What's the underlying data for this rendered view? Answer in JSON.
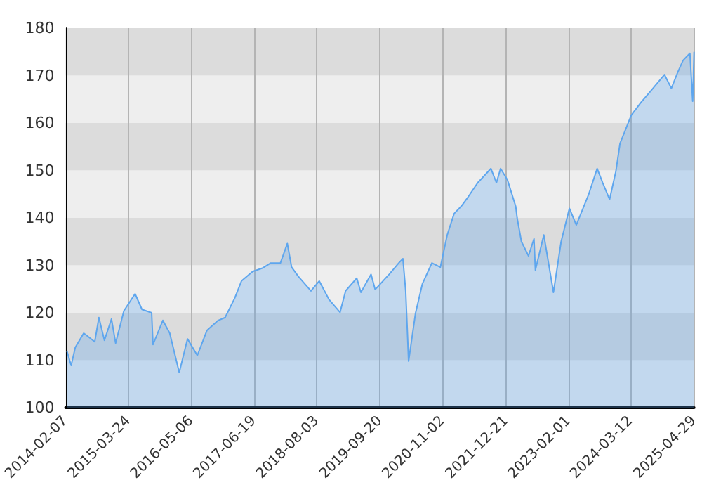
{
  "chart_data": {
    "type": "area",
    "xlim": [
      "2014-02-07",
      "2025-04-29"
    ],
    "xticks": [
      "2014-02-07",
      "2015-03-24",
      "2016-05-06",
      "2017-06-19",
      "2018-08-03",
      "2019-09-20",
      "2020-11-02",
      "2021-12-21",
      "2023-02-01",
      "2024-03-12",
      "2025-04-29"
    ],
    "ylim": [
      100,
      180
    ],
    "yticks": [
      100,
      110,
      120,
      130,
      140,
      150,
      160,
      170,
      180
    ],
    "grid": true,
    "marker": "none",
    "series": [
      {
        "color": "#5ea6ee",
        "x": [
          "2014-02-16",
          "2014-03-15",
          "2014-04-11",
          "2014-06-05",
          "2014-08-16",
          "2014-09-12",
          "2014-10-18",
          "2014-12-03",
          "2014-12-30",
          "2015-02-22",
          "2015-05-06",
          "2015-06-20",
          "2015-08-22",
          "2015-08-31",
          "2015-11-03",
          "2015-12-18",
          "2016-02-18",
          "2016-04-12",
          "2016-06-15",
          "2016-08-17",
          "2016-10-29",
          "2016-12-13",
          "2017-02-14",
          "2017-03-30",
          "2017-06-11",
          "2017-08-13",
          "2017-10-07",
          "2017-12-09",
          "2018-01-23",
          "2018-02-20",
          "2018-04-06",
          "2018-06-26",
          "2018-08-19",
          "2018-10-22",
          "2019-01-02",
          "2019-02-07",
          "2019-04-21",
          "2019-05-18",
          "2019-07-23",
          "2019-08-19",
          "2019-11-18",
          "2020-01-20",
          "2020-02-16",
          "2020-03-05",
          "2020-03-24",
          "2020-05-08",
          "2020-06-22",
          "2020-08-23",
          "2020-10-17",
          "2020-12-01",
          "2021-01-15",
          "2021-03-01",
          "2021-04-16",
          "2021-06-18",
          "2021-09-12",
          "2021-10-18",
          "2021-11-14",
          "2021-12-29",
          "2022-02-21",
          "2022-03-02",
          "2022-03-30",
          "2022-05-15",
          "2022-06-20",
          "2022-06-29",
          "2022-08-23",
          "2022-10-25",
          "2022-12-14",
          "2023-02-06",
          "2023-03-23",
          "2023-06-12",
          "2023-08-06",
          "2023-09-11",
          "2023-10-26",
          "2023-12-06",
          "2024-01-02",
          "2024-03-15",
          "2024-05-17",
          "2024-07-19",
          "2024-10-18",
          "2024-12-02",
          "2025-01-10",
          "2025-02-16",
          "2025-04-02",
          "2025-04-20",
          "2025-04-29"
        ],
        "values": [
          111.9,
          108.9,
          112.7,
          115.7,
          113.9,
          119,
          114.2,
          118.7,
          113.6,
          120.4,
          124,
          120.7,
          120,
          113.3,
          118.4,
          115.7,
          107.4,
          114.5,
          111,
          116.3,
          118.4,
          119,
          123.1,
          126.7,
          128.7,
          129.4,
          130.5,
          130.5,
          134.6,
          129.6,
          127.6,
          124.6,
          126.7,
          122.8,
          120.1,
          124.6,
          127.3,
          124.3,
          128.1,
          124.9,
          128.1,
          130.5,
          131.4,
          124.6,
          109.8,
          119.9,
          126.1,
          130.5,
          129.6,
          136.4,
          140.9,
          142.4,
          144.4,
          147.4,
          150.4,
          147.4,
          150.4,
          148,
          142.4,
          140,
          135,
          132,
          135.6,
          129,
          136.4,
          124.3,
          135,
          142,
          138.5,
          145,
          150.4,
          147.4,
          143.9,
          149.8,
          155.7,
          161.6,
          164.3,
          166.7,
          170.2,
          167.3,
          170.5,
          173.2,
          174.7,
          164.6,
          175
        ]
      }
    ]
  }
}
